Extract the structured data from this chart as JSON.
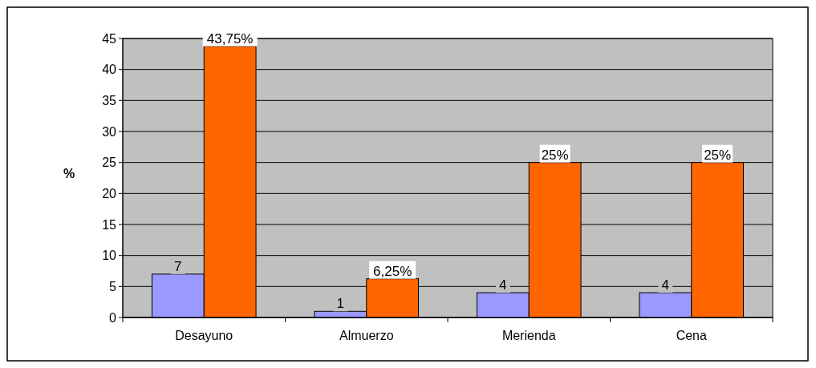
{
  "chart_data": {
    "type": "bar",
    "ylabel": "%",
    "categories": [
      "Desayuno",
      "Almuerzo",
      "Merienda",
      "Cena"
    ],
    "series": [
      {
        "color": "#9999ff",
        "values": [
          7,
          1,
          4,
          4
        ],
        "value_labels": [
          "7",
          "1",
          "4",
          "4"
        ]
      },
      {
        "color": "#ff6600",
        "values": [
          43.75,
          6.25,
          25,
          25
        ],
        "value_labels": [
          "43,75%",
          "6,25%",
          "25%",
          "25%"
        ]
      }
    ],
    "ylim": [
      0,
      45
    ],
    "yticks": [
      0,
      5,
      10,
      15,
      20,
      25,
      30,
      35,
      40,
      45
    ],
    "grid": "y"
  }
}
